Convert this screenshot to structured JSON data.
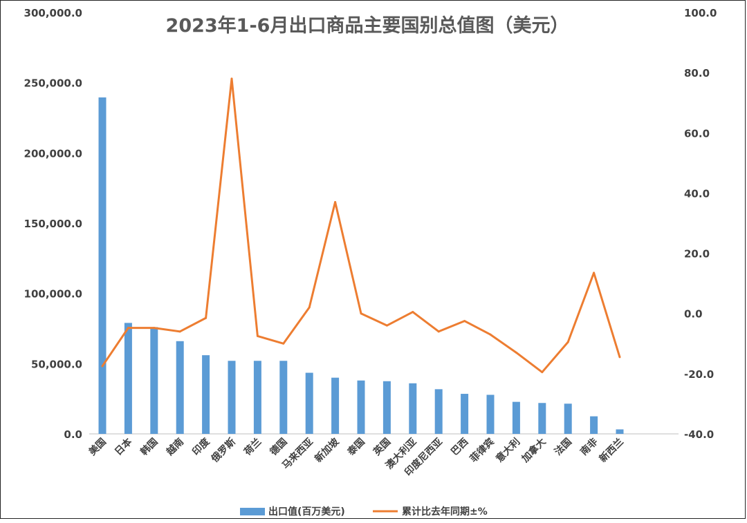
{
  "chart_data": {
    "type": "bar+line",
    "title": "2023年1-6月出口商品主要国别总值图（美元）",
    "categories": [
      "美国",
      "日本",
      "韩国",
      "越南",
      "印度",
      "俄罗斯",
      "荷兰",
      "德国",
      "马来西亚",
      "新加坡",
      "泰国",
      "英国",
      "澳大利亚",
      "印度尼西亚",
      "巴西",
      "菲律宾",
      "意大利",
      "加拿大",
      "法国",
      "南非",
      "新西兰"
    ],
    "series": [
      {
        "name": "出口值(百万美元)",
        "type": "bar",
        "axis": "left",
        "color": "#5b9bd5",
        "values": [
          239500,
          79000,
          76000,
          66000,
          56000,
          52000,
          52000,
          52000,
          43500,
          40000,
          38000,
          37500,
          36000,
          31800,
          28500,
          27800,
          22800,
          22000,
          21500,
          12500,
          3200
        ]
      },
      {
        "name": "累计比去年同期±%",
        "type": "line",
        "axis": "right",
        "color": "#ed7d31",
        "values": [
          -17.5,
          -4.8,
          -4.8,
          -6.0,
          -1.5,
          78.0,
          -7.5,
          -10.0,
          2.0,
          37.0,
          0.0,
          -4.0,
          0.5,
          -6.0,
          -2.5,
          -7.0,
          -13.0,
          -19.5,
          -9.5,
          13.5,
          -14.5
        ]
      }
    ],
    "y_left": {
      "ticks": [
        "0.0",
        "50,000.0",
        "100,000.0",
        "150,000.0",
        "200,000.0",
        "250,000.0",
        "300,000.0"
      ],
      "lim": [
        0,
        300000
      ]
    },
    "y_right": {
      "ticks": [
        "-40.0",
        "-20.0",
        "0.0",
        "20.0",
        "40.0",
        "60.0",
        "80.0",
        "100.0"
      ],
      "lim": [
        -40,
        100
      ]
    },
    "grid": false,
    "legend": {
      "position": "bottom"
    }
  }
}
